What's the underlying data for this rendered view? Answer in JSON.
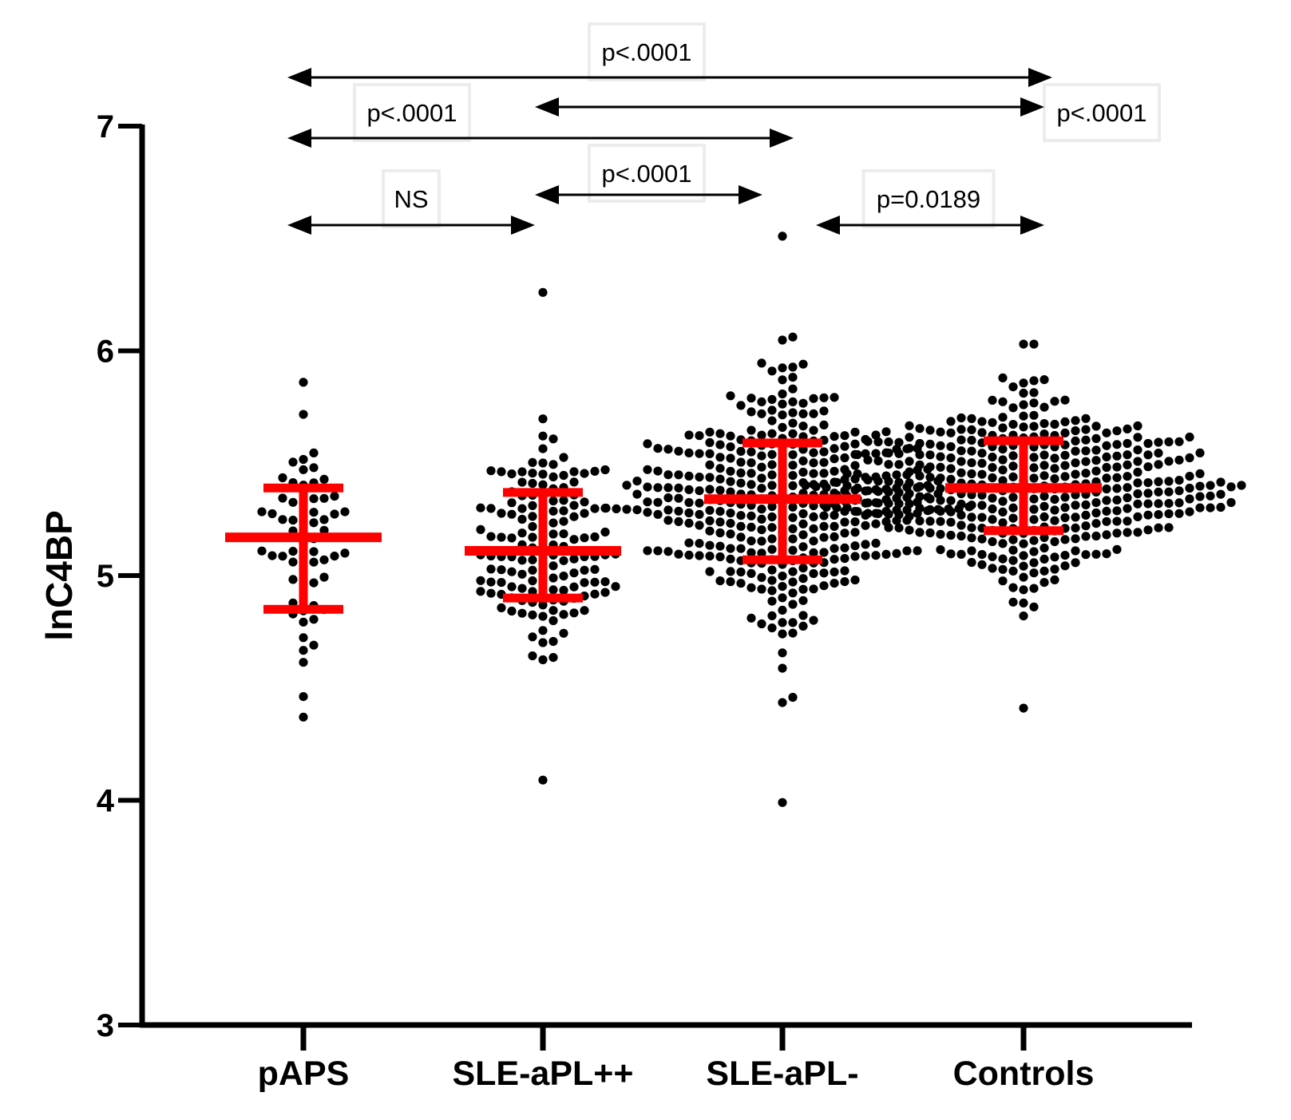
{
  "chart_data": {
    "type": "scatter",
    "subtype": "dot-plot with mean and SD",
    "title": "",
    "xlabel": "",
    "ylabel": "lnC4BP",
    "ylim": [
      3,
      7
    ],
    "yticks": [
      3,
      4,
      5,
      6,
      7
    ],
    "grid": false,
    "legend": "none",
    "categories": [
      "pAPS",
      "SLE-aPL++",
      "SLE-aPL-",
      "Controls"
    ],
    "summary_color": "#ff0000",
    "point_color": "#000000",
    "series": [
      {
        "category": "pAPS",
        "mean": 5.17,
        "sd_low": 4.85,
        "sd_high": 5.39,
        "n": 62,
        "min": 4.37,
        "max": 5.86
      },
      {
        "category": "SLE-aPL++",
        "mean": 5.11,
        "sd_low": 4.9,
        "sd_high": 5.37,
        "n": 150,
        "min": 4.09,
        "max": 6.26
      },
      {
        "category": "SLE-aPL-",
        "mean": 5.34,
        "sd_low": 5.07,
        "sd_high": 5.59,
        "n": 380,
        "min": 3.99,
        "max": 6.51
      },
      {
        "category": "Controls",
        "mean": 5.39,
        "sd_low": 5.2,
        "sd_high": 5.6,
        "n": 420,
        "min": 4.41,
        "max": 6.03
      }
    ],
    "annotations": [
      {
        "from": "pAPS",
        "to": "Controls",
        "label": "p<.0001"
      },
      {
        "from": "SLE-aPL++",
        "to": "Controls",
        "label": "p<.0001"
      },
      {
        "from": "pAPS",
        "to": "SLE-aPL-",
        "label": "p<.0001"
      },
      {
        "from": "SLE-aPL++",
        "to": "SLE-aPL-",
        "label": "p<.0001"
      },
      {
        "from": "pAPS",
        "to": "SLE-aPL++",
        "label": "NS"
      },
      {
        "from": "SLE-aPL-",
        "to": "Controls",
        "label": "p=0.0189"
      }
    ]
  }
}
